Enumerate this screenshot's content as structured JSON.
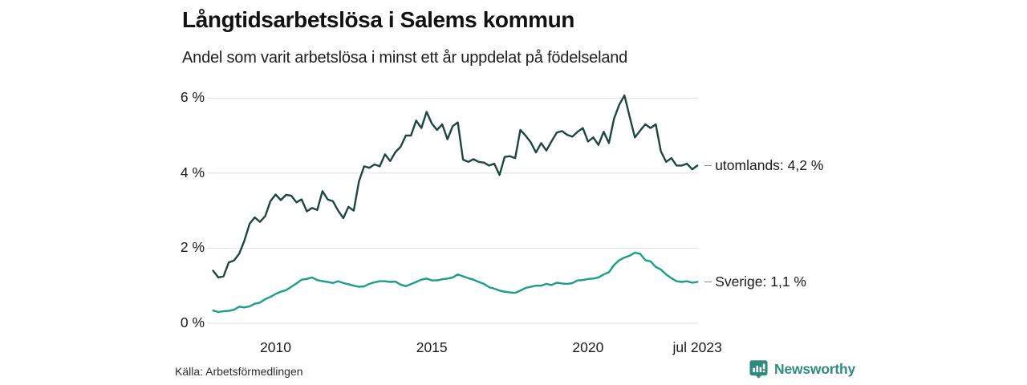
{
  "header": {
    "title": "Långtidsarbetslösa i Salems kommun",
    "subtitle": "Andel som varit arbetslösa i minst ett år uppdelat på födelseland"
  },
  "chart_data": {
    "type": "line",
    "title": "Långtidsarbetslösa i Salems kommun",
    "subtitle": "Andel som varit arbetslösa i minst ett år uppdelat på födelseland",
    "x_unit": "decimal_year_monthly_series",
    "x_range_note": "jan 2008 – jul 2023, sampled every 2 months",
    "ylim": [
      0,
      6.3
    ],
    "grid": "horizontal",
    "legend_position": "end-of-line-annotations",
    "y_tick_values": [
      6,
      4,
      2,
      0
    ],
    "y_tick_labels": [
      "6 %",
      "4 %",
      "2 %",
      "0 %"
    ],
    "x_tick_values": [
      2010,
      2015,
      2020,
      2023.5
    ],
    "x_tick_labels": [
      "2010",
      "2015",
      "2020",
      "jul 2023"
    ],
    "x": [
      2008.0,
      2008.167,
      2008.333,
      2008.5,
      2008.667,
      2008.833,
      2009.0,
      2009.167,
      2009.333,
      2009.5,
      2009.667,
      2009.833,
      2010.0,
      2010.167,
      2010.333,
      2010.5,
      2010.667,
      2010.833,
      2011.0,
      2011.167,
      2011.333,
      2011.5,
      2011.667,
      2011.833,
      2012.0,
      2012.167,
      2012.333,
      2012.5,
      2012.667,
      2012.833,
      2013.0,
      2013.167,
      2013.333,
      2013.5,
      2013.667,
      2013.833,
      2014.0,
      2014.167,
      2014.333,
      2014.5,
      2014.667,
      2014.833,
      2015.0,
      2015.167,
      2015.333,
      2015.5,
      2015.667,
      2015.833,
      2016.0,
      2016.167,
      2016.333,
      2016.5,
      2016.667,
      2016.833,
      2017.0,
      2017.167,
      2017.333,
      2017.5,
      2017.667,
      2017.833,
      2018.0,
      2018.167,
      2018.333,
      2018.5,
      2018.667,
      2018.833,
      2019.0,
      2019.167,
      2019.333,
      2019.5,
      2019.667,
      2019.833,
      2020.0,
      2020.167,
      2020.333,
      2020.5,
      2020.667,
      2020.833,
      2021.0,
      2021.167,
      2021.333,
      2021.5,
      2021.667,
      2021.833,
      2022.0,
      2022.167,
      2022.333,
      2022.5,
      2022.667,
      2022.833,
      2023.0,
      2023.167,
      2023.333,
      2023.5
    ],
    "series": [
      {
        "name": "utomlands",
        "end_label": "utomlands: 4,2 %",
        "end_value_label": "4,2 %",
        "color": "#1d473e",
        "values": [
          1.4,
          1.22,
          1.25,
          1.62,
          1.67,
          1.85,
          2.2,
          2.65,
          2.82,
          2.7,
          2.85,
          3.25,
          3.43,
          3.28,
          3.42,
          3.4,
          3.22,
          3.3,
          2.98,
          3.07,
          3.02,
          3.52,
          3.3,
          3.25,
          3.0,
          2.8,
          3.1,
          3.0,
          3.78,
          4.18,
          4.14,
          4.23,
          4.18,
          4.5,
          4.32,
          4.56,
          4.7,
          5.0,
          5.0,
          5.4,
          5.2,
          5.63,
          5.32,
          5.15,
          5.3,
          4.9,
          5.25,
          5.35,
          4.36,
          4.3,
          4.37,
          4.3,
          4.28,
          4.2,
          4.25,
          3.95,
          4.43,
          4.45,
          4.4,
          5.15,
          5.0,
          4.82,
          4.55,
          4.8,
          4.6,
          4.85,
          5.08,
          5.12,
          5.02,
          4.97,
          5.1,
          5.2,
          4.84,
          4.95,
          4.75,
          5.1,
          4.8,
          5.45,
          5.82,
          6.07,
          5.5,
          4.95,
          5.13,
          5.3,
          5.2,
          5.3,
          4.58,
          4.3,
          4.4,
          4.2,
          4.2,
          4.25,
          4.1,
          4.2
        ]
      },
      {
        "name": "Sverige",
        "end_label": "Sverige: 1,1 %",
        "end_value_label": "1,1 %",
        "color": "#1a9d8a",
        "values": [
          0.34,
          0.3,
          0.32,
          0.33,
          0.36,
          0.44,
          0.42,
          0.45,
          0.52,
          0.55,
          0.64,
          0.7,
          0.78,
          0.84,
          0.88,
          0.97,
          1.06,
          1.16,
          1.18,
          1.22,
          1.15,
          1.12,
          1.1,
          1.07,
          1.12,
          1.07,
          1.04,
          1.0,
          0.97,
          0.98,
          1.05,
          1.09,
          1.12,
          1.12,
          1.1,
          1.11,
          1.03,
          0.99,
          1.04,
          1.1,
          1.16,
          1.19,
          1.14,
          1.14,
          1.17,
          1.19,
          1.22,
          1.3,
          1.25,
          1.2,
          1.16,
          1.1,
          1.05,
          0.96,
          0.92,
          0.87,
          0.84,
          0.82,
          0.81,
          0.87,
          0.94,
          0.97,
          1.0,
          1.0,
          1.05,
          1.02,
          1.08,
          1.06,
          1.05,
          1.07,
          1.14,
          1.15,
          1.18,
          1.19,
          1.22,
          1.3,
          1.36,
          1.55,
          1.68,
          1.75,
          1.8,
          1.88,
          1.85,
          1.68,
          1.65,
          1.5,
          1.43,
          1.3,
          1.2,
          1.12,
          1.1,
          1.12,
          1.08,
          1.1
        ]
      }
    ]
  },
  "footer": {
    "source": "Källa: Arbetsförmedlingen",
    "brand": "Newsworthy"
  },
  "colors": {
    "grid": "#e0e0e0",
    "line_dark": "#1d473e",
    "line_teal": "#1a9d8a",
    "brand_teal": "#2e8b80",
    "text": "#1a1a1a"
  }
}
